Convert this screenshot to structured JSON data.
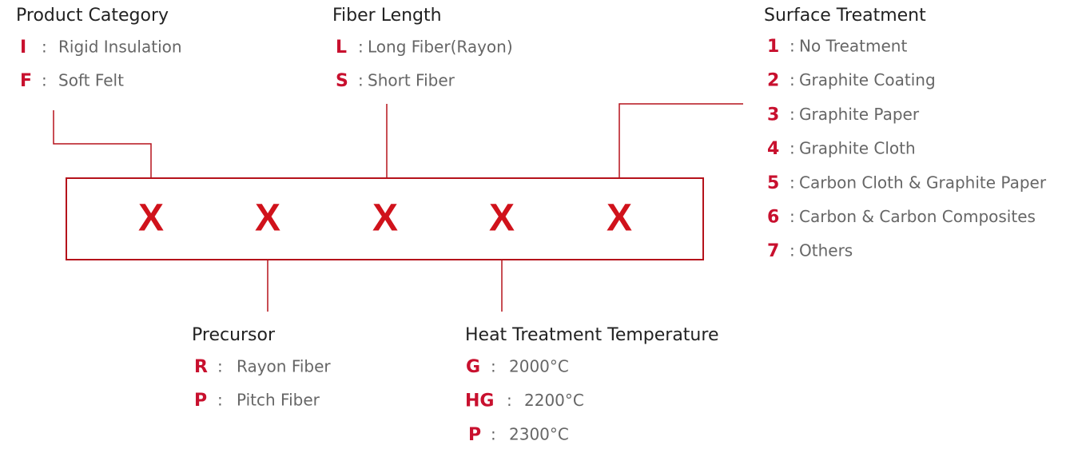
{
  "code_box": {
    "slots": [
      "X",
      "X",
      "X",
      "X",
      "X"
    ]
  },
  "separator": ":",
  "groups": [
    {
      "title": "Product Category",
      "items": [
        {
          "code": "I",
          "label": "Rigid Insulation"
        },
        {
          "code": "F",
          "label": "Soft Felt"
        }
      ]
    },
    {
      "title": "Fiber Length",
      "items": [
        {
          "code": "L",
          "label": "Long Fiber(Rayon)"
        },
        {
          "code": "S",
          "label": "Short Fiber"
        }
      ]
    },
    {
      "title": "Surface Treatment",
      "items": [
        {
          "code": "1",
          "label": "No Treatment"
        },
        {
          "code": "2",
          "label": "Graphite Coating"
        },
        {
          "code": "3",
          "label": "Graphite Paper"
        },
        {
          "code": "4",
          "label": "Graphite Cloth"
        },
        {
          "code": "5",
          "label": "Carbon Cloth & Graphite Paper"
        },
        {
          "code": "6",
          "label": "Carbon & Carbon Composites"
        },
        {
          "code": "7",
          "label": "Others"
        }
      ]
    },
    {
      "title": "Precursor",
      "items": [
        {
          "code": "R",
          "label": "Rayon Fiber"
        },
        {
          "code": "P",
          "label": "Pitch Fiber"
        }
      ]
    },
    {
      "title": "Heat Treatment Temperature",
      "items": [
        {
          "code": "G",
          "label": "2000°C"
        },
        {
          "code": "HG",
          "label": "2200°C"
        },
        {
          "code": "P",
          "label": "2300°C"
        }
      ]
    }
  ]
}
